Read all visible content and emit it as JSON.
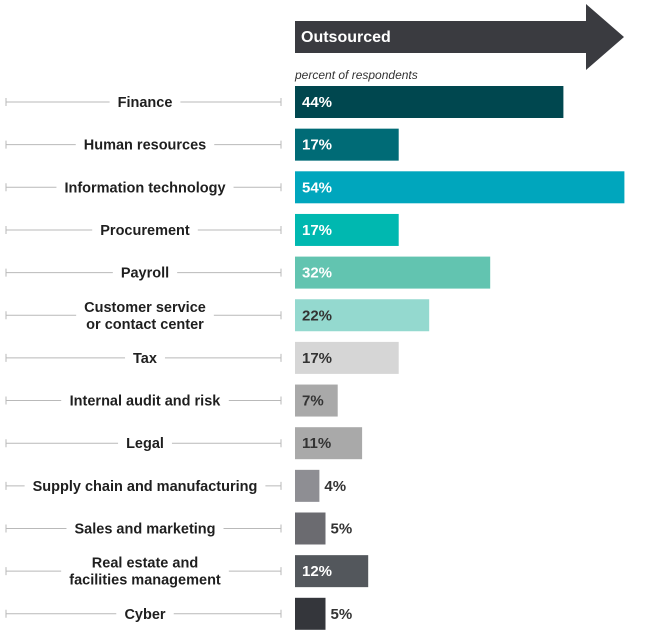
{
  "chart_data": {
    "type": "bar",
    "orientation": "horizontal",
    "title": "Outsourced",
    "subtitle": "percent of respondents",
    "categories": [
      [
        "Finance"
      ],
      [
        "Human resources"
      ],
      [
        "Information technology"
      ],
      [
        "Procurement"
      ],
      [
        "Payroll"
      ],
      [
        "Customer service",
        "or contact center"
      ],
      [
        "Tax"
      ],
      [
        "Internal audit and risk"
      ],
      [
        "Legal"
      ],
      [
        "Supply chain and manufacturing"
      ],
      [
        "Sales and marketing"
      ],
      [
        "Real estate and",
        "facilities management"
      ],
      [
        "Cyber"
      ]
    ],
    "values": [
      44,
      17,
      54,
      17,
      32,
      22,
      17,
      7,
      11,
      4,
      5,
      12,
      5
    ],
    "value_labels": [
      "44%",
      "17%",
      "54%",
      "17%",
      "32%",
      "22%",
      "17%",
      "7%",
      "11%",
      "4%",
      "5%",
      "12%",
      "5%"
    ],
    "unit": "%",
    "colors": [
      "#00474f",
      "#006b76",
      "#00a6bd",
      "#00b8b0",
      "#62c4b0",
      "#94d9cf",
      "#d6d6d6",
      "#a9a9a9",
      "#a9a9a9",
      "#8e8e93",
      "#6b6b70",
      "#53575c",
      "#34363b"
    ],
    "label_colors": [
      "#ffffff",
      "#ffffff",
      "#ffffff",
      "#ffffff",
      "#ffffff",
      "#333333",
      "#333333",
      "#333333",
      "#333333",
      "#333333",
      "#333333",
      "#ffffff",
      "#333333"
    ],
    "header_color": "#3a3b40",
    "grid": false,
    "legend": "none"
  }
}
